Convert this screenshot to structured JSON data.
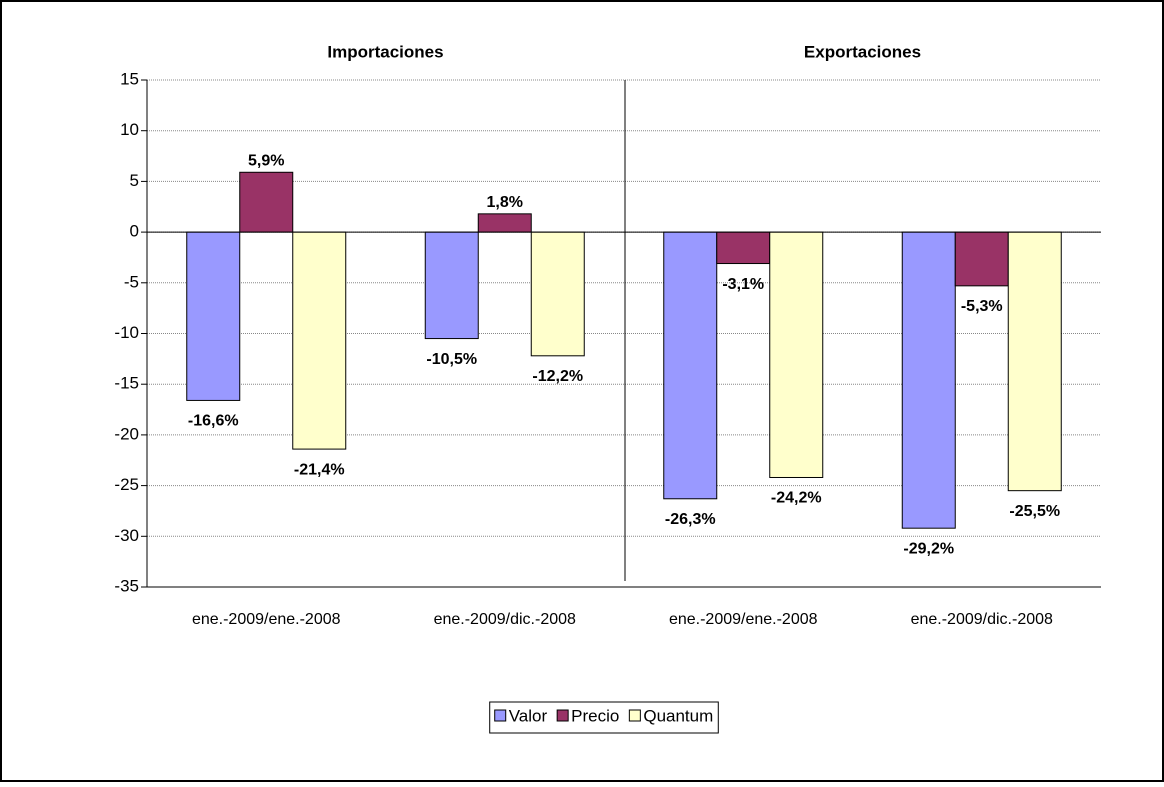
{
  "chart_data": {
    "type": "bar",
    "annotations": [
      "Importaciones",
      "Exportaciones"
    ],
    "categories": [
      "ene.-2009/ene.-2008",
      "ene.-2009/dic.-2008",
      "ene.-2009/ene.-2008",
      "ene.-2009/dic.-2008"
    ],
    "series": [
      {
        "name": "Valor",
        "color": "#9999ff",
        "values": [
          -16.6,
          -10.5,
          -26.3,
          -29.2
        ],
        "value_labels": [
          "-16,6%",
          "-10,5%",
          "-26,3%",
          "-29,2%"
        ]
      },
      {
        "name": "Precio",
        "color": "#993366",
        "values": [
          5.9,
          1.8,
          -3.1,
          -5.3
        ],
        "value_labels": [
          "5,9%",
          "1,8%",
          "-3,1%",
          "-5,3%"
        ]
      },
      {
        "name": "Quantum",
        "color": "#ffffcc",
        "values": [
          -21.4,
          -12.2,
          -24.2,
          -25.5
        ],
        "value_labels": [
          "-21,4%",
          "-12,2%",
          "-24,2%",
          "-25,5%"
        ]
      }
    ],
    "ylim": [
      -35,
      15
    ],
    "yticks": [
      -35,
      -30,
      -25,
      -20,
      -15,
      -10,
      -5,
      0,
      5,
      10,
      15
    ],
    "grid": true,
    "legend": "bottom"
  }
}
